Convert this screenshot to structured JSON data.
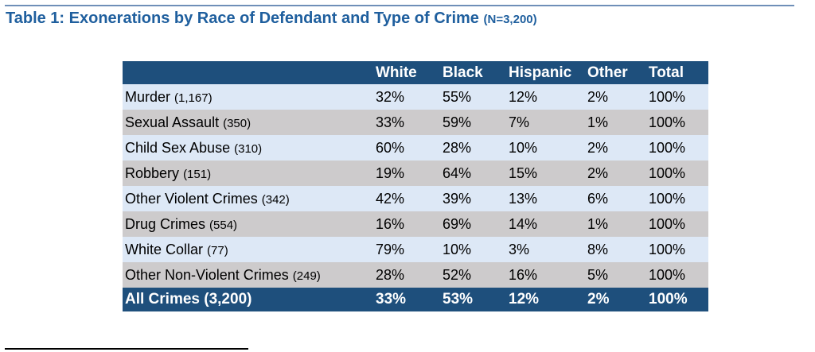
{
  "title": {
    "main": "Table 1:  Exonerations by Race of Defendant and Type of Crime",
    "n": "(N=3,200)"
  },
  "table": {
    "headers": [
      "",
      "White",
      "Black",
      "Hispanic",
      "Other",
      "Total"
    ],
    "rows": [
      {
        "label": "Murder",
        "count": "(1,167)",
        "values": [
          "32%",
          "55%",
          "12%",
          "2%",
          "100%"
        ]
      },
      {
        "label": "Sexual Assault",
        "count": "(350)",
        "values": [
          "33%",
          "59%",
          "7%",
          "1%",
          "100%"
        ]
      },
      {
        "label": "Child Sex Abuse",
        "count": "(310)",
        "values": [
          "60%",
          "28%",
          "10%",
          "2%",
          "100%"
        ]
      },
      {
        "label": "Robbery",
        "count": "(151)",
        "values": [
          "19%",
          "64%",
          "15%",
          "2%",
          "100%"
        ]
      },
      {
        "label": "Other Violent Crimes",
        "count": "(342)",
        "values": [
          "42%",
          "39%",
          "13%",
          "6%",
          "100%"
        ]
      },
      {
        "label": "Drug Crimes",
        "count": "(554)",
        "values": [
          "16%",
          "69%",
          "14%",
          "1%",
          "100%"
        ]
      },
      {
        "label": "White Collar",
        "count": "(77)",
        "values": [
          "79%",
          "10%",
          "3%",
          "8%",
          "100%"
        ]
      },
      {
        "label": "Other Non-Violent Crimes",
        "count": "(249)",
        "values": [
          "28%",
          "52%",
          "16%",
          "5%",
          "100%"
        ]
      }
    ],
    "total": {
      "label": "All Crimes (3,200)",
      "values": [
        "33%",
        "53%",
        "12%",
        "2%",
        "100%"
      ]
    }
  },
  "colors": {
    "title": "#1f5f9e",
    "header_bg": "#1e4f7c",
    "row_light": "#dde8f6",
    "row_gray": "#cdcbcc"
  }
}
